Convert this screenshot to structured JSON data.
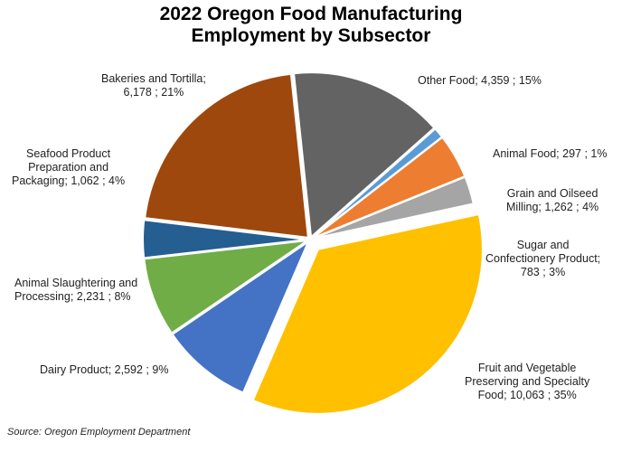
{
  "chart_data": {
    "type": "pie",
    "title_line1": "2022 Oregon Food Manufacturing",
    "title_line2": "Employment by Subsector",
    "slices": [
      {
        "name": "Other Food",
        "label": "Other Food;  4,359 ; 15%",
        "value": 4359,
        "percent": 15,
        "color": "#636363"
      },
      {
        "name": "Animal Food",
        "label": "Animal Food;  297 ; 1%",
        "value": 297,
        "percent": 1,
        "color": "#5b9bd5"
      },
      {
        "name": "Grain and Oilseed Milling",
        "label": "Grain and Oilseed\nMilling;  1,262 ; 4%",
        "value": 1262,
        "percent": 4,
        "color": "#ed7d31"
      },
      {
        "name": "Sugar and Confectionery Product",
        "label": "Sugar and\nConfectionery Product;\n783 ; 3%",
        "value": 783,
        "percent": 3,
        "color": "#a5a5a5"
      },
      {
        "name": "Fruit and Vegetable Preserving and Specialty Food",
        "label": "Fruit and Vegetable\nPreserving and Specialty\nFood;  10,063 ; 35%",
        "value": 10063,
        "percent": 35,
        "color": "#ffc000"
      },
      {
        "name": "Dairy Product",
        "label": "Dairy Product;  2,592 ; 9%",
        "value": 2592,
        "percent": 9,
        "color": "#4472c4"
      },
      {
        "name": "Animal Slaughtering and Processing",
        "label": "Animal Slaughtering and\nProcessing;  2,231 ; 8%",
        "value": 2231,
        "percent": 8,
        "color": "#70ad47"
      },
      {
        "name": "Seafood Product Preparation and Packaging",
        "label": "Seafood Product\nPreparation and\nPackaging;  1,062 ; 4%",
        "value": 1062,
        "percent": 4,
        "color": "#255e91"
      },
      {
        "name": "Bakeries and Tortilla",
        "label": "Bakeries and Tortilla;\n6,178 ; 21%",
        "value": 6178,
        "percent": 21,
        "color": "#9e480e"
      }
    ],
    "exploded": [
      "Fruit and Vegetable Preserving and Specialty Food"
    ],
    "source": "Source: Oregon Employment Department"
  }
}
